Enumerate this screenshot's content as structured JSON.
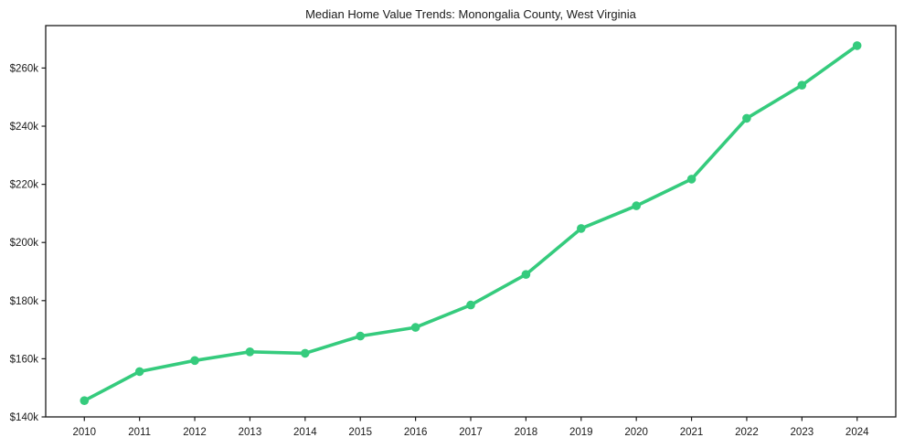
{
  "chart_data": {
    "type": "line",
    "title": "Median Home Value Trends: Monongalia County, West Virginia",
    "xlabel": "",
    "ylabel": "",
    "x": [
      2010,
      2011,
      2012,
      2013,
      2014,
      2015,
      2016,
      2017,
      2018,
      2019,
      2020,
      2021,
      2022,
      2023,
      2024
    ],
    "xtick_labels": [
      "2010",
      "2011",
      "2012",
      "2013",
      "2014",
      "2015",
      "2016",
      "2017",
      "2018",
      "2019",
      "2020",
      "2021",
      "2022",
      "2023",
      "2024"
    ],
    "values": [
      145600,
      155600,
      159400,
      162400,
      161900,
      167800,
      170800,
      178500,
      189000,
      204800,
      212600,
      221800,
      242700,
      254100,
      267700
    ],
    "yticks": [
      140000,
      160000,
      180000,
      200000,
      220000,
      240000,
      260000
    ],
    "ytick_labels": [
      "$140k",
      "$160k",
      "$180k",
      "$200k",
      "$220k",
      "$240k",
      "$260k"
    ],
    "ylim": [
      140000,
      274600
    ],
    "xlim": [
      2009.3,
      2024.7
    ],
    "grid": false,
    "legend_position": "none",
    "marker": "circle",
    "line_color": "#35cb7d",
    "marker_color": "#35cb7d",
    "axis_color": "#1a1a1a",
    "text_color": "#1a1a1a",
    "background_color": "#ffffff"
  }
}
